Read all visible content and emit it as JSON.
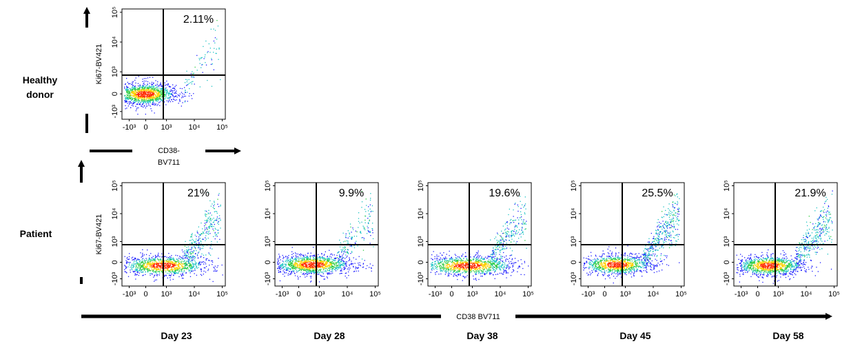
{
  "figure": {
    "rows": [
      {
        "label_lines": [
          "Healthy",
          "donor"
        ]
      },
      {
        "label_lines": [
          "Patient"
        ]
      }
    ],
    "healthy_xlabel_lines": [
      "CD38-",
      "BV711"
    ],
    "bottom_xlabel": "CD38 BV711",
    "colors": {
      "axis": "#000000",
      "density_low": "#1a1aff",
      "density_mid": "#19c2c2",
      "density_high": "#ff2a00"
    }
  },
  "chart_data": [
    {
      "type": "scatter",
      "row": "Healthy donor",
      "day": "",
      "ylabel": "Ki67-BV421",
      "xlabel": "CD38-BV711",
      "quadrant_percent": "2.11%",
      "gate": {
        "x": 1000,
        "y": 1000
      },
      "xticks": [
        "-10³",
        "0",
        "10³",
        "10⁴",
        "10⁵"
      ],
      "yticks": [
        "-10³",
        "0",
        "10³",
        "10⁴",
        "10⁵"
      ],
      "x_scale": "biexponential",
      "y_scale": "biexponential"
    },
    {
      "type": "scatter",
      "row": "Patient",
      "day": "Day 23",
      "ylabel": "Ki67-BV421",
      "xlabel": "CD38 BV711",
      "quadrant_percent": "21%",
      "gate": {
        "x": 1000,
        "y": 1000
      },
      "xticks": [
        "-10³",
        "0",
        "10³",
        "10⁴",
        "10⁵"
      ],
      "yticks": [
        "-10³",
        "0",
        "10³",
        "10⁴",
        "10⁵"
      ],
      "x_scale": "biexponential",
      "y_scale": "biexponential"
    },
    {
      "type": "scatter",
      "row": "Patient",
      "day": "Day 28",
      "ylabel": "",
      "xlabel": "CD38 BV711",
      "quadrant_percent": "9.9%",
      "gate": {
        "x": 1000,
        "y": 1000
      },
      "xticks": [
        "-10³",
        "0",
        "10³",
        "10⁴",
        "10⁵"
      ],
      "yticks": [
        "-10³",
        "0",
        "10³",
        "10⁴",
        "10⁵"
      ],
      "x_scale": "biexponential",
      "y_scale": "biexponential"
    },
    {
      "type": "scatter",
      "row": "Patient",
      "day": "Day 38",
      "ylabel": "",
      "xlabel": "CD38 BV711",
      "quadrant_percent": "19.6%",
      "gate": {
        "x": 1000,
        "y": 1000
      },
      "xticks": [
        "-10³",
        "0",
        "10³",
        "10⁴",
        "10⁵"
      ],
      "yticks": [
        "-10³",
        "0",
        "10³",
        "10⁴",
        "10⁵"
      ],
      "x_scale": "biexponential",
      "y_scale": "biexponential"
    },
    {
      "type": "scatter",
      "row": "Patient",
      "day": "Day 45",
      "ylabel": "",
      "xlabel": "CD38 BV711",
      "quadrant_percent": "25.5%",
      "gate": {
        "x": 1000,
        "y": 1000
      },
      "xticks": [
        "-10³",
        "0",
        "10³",
        "10⁴",
        "10⁵"
      ],
      "yticks": [
        "-10³",
        "0",
        "10³",
        "10⁴",
        "10⁵"
      ],
      "x_scale": "biexponential",
      "y_scale": "biexponential"
    },
    {
      "type": "scatter",
      "row": "Patient",
      "day": "Day 58",
      "ylabel": "",
      "xlabel": "CD38 BV711",
      "quadrant_percent": "21.9%",
      "gate": {
        "x": 1000,
        "y": 1000
      },
      "xticks": [
        "-10³",
        "0",
        "10³",
        "10⁴",
        "10⁵"
      ],
      "yticks": [
        "-10³",
        "0",
        "10³",
        "10⁴",
        "10⁵"
      ],
      "x_scale": "biexponential",
      "y_scale": "biexponential"
    }
  ]
}
